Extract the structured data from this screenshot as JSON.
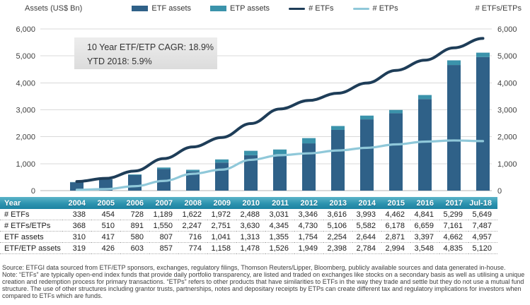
{
  "annotation": {
    "line1": "10 Year ETF/ETP CAGR: 18.9%",
    "line2": "YTD 2018: 5.9%"
  },
  "legend": {
    "items": [
      {
        "label": "ETF assets",
        "type": "square",
        "color": "#2f6188"
      },
      {
        "label": "ETP assets",
        "type": "square",
        "color": "#3b93ab"
      },
      {
        "label": "# ETFs",
        "type": "line",
        "color": "#1e3d58"
      },
      {
        "label": "# ETPs",
        "type": "line",
        "color": "#8fc8d9"
      }
    ]
  },
  "chart_data": {
    "type": "combo",
    "subtypes": [
      "stacked-bar",
      "line"
    ],
    "categories": [
      "2004",
      "2005",
      "2006",
      "2007",
      "2008",
      "2009",
      "2010",
      "2011",
      "2012",
      "2013",
      "2014",
      "2015",
      "2016",
      "2017",
      "Jul-18"
    ],
    "series": [
      {
        "name": "ETF assets",
        "chart_type": "bar",
        "stack": "assets",
        "color": "#2f6188",
        "values": [
          310,
          417,
          580,
          807,
          716,
          1041,
          1313,
          1355,
          1754,
          2254,
          2644,
          2871,
          3397,
          4662,
          4957
        ]
      },
      {
        "name": "ETP assets",
        "chart_type": "bar",
        "stack": "assets",
        "color": "#3b93ab",
        "values": [
          9,
          9,
          23,
          50,
          58,
          117,
          165,
          171,
          195,
          144,
          140,
          123,
          151,
          173,
          163
        ]
      },
      {
        "name": "# ETFs",
        "chart_type": "line",
        "axis": "right",
        "color": "#1e3d58",
        "values": [
          338,
          454,
          728,
          1189,
          1622,
          1972,
          2488,
          3031,
          3346,
          3616,
          3993,
          4462,
          4841,
          5299,
          5649
        ]
      },
      {
        "name": "# ETPs",
        "chart_type": "line",
        "axis": "right",
        "color": "#8fc8d9",
        "values": [
          30,
          56,
          163,
          361,
          625,
          779,
          1142,
          1314,
          1384,
          1490,
          1589,
          1716,
          1818,
          1862,
          1838
        ]
      }
    ],
    "y_left": {
      "label": "Assets (US$ Bn)",
      "min": 0,
      "max": 6000,
      "step": 1000
    },
    "y_right": {
      "label": "# ETFs/ETPs",
      "min": 0,
      "max": 6000,
      "step": 1000
    },
    "grid": true,
    "legend_position": "top"
  },
  "table": {
    "corner_label": "Year",
    "columns": [
      "2004",
      "2005",
      "2006",
      "2007",
      "2008",
      "2009",
      "2010",
      "2011",
      "2012",
      "2013",
      "2014",
      "2015",
      "2016",
      "2017",
      "Jul-18"
    ],
    "rows": [
      {
        "label": "# ETFs",
        "values": [
          "338",
          "454",
          "728",
          "1,189",
          "1,622",
          "1,972",
          "2,488",
          "3,031",
          "3,346",
          "3,616",
          "3,993",
          "4,462",
          "4,841",
          "5,299",
          "5,649"
        ]
      },
      {
        "label": "# ETFs/ETPs",
        "values": [
          "368",
          "510",
          "891",
          "1,550",
          "2,247",
          "2,751",
          "3,630",
          "4,345",
          "4,730",
          "5,106",
          "5,582",
          "6,178",
          "6,659",
          "7,161",
          "7,487"
        ]
      },
      {
        "label": "ETF assets",
        "values": [
          "310",
          "417",
          "580",
          "807",
          "716",
          "1,041",
          "1,313",
          "1,355",
          "1,754",
          "2,254",
          "2,644",
          "2,871",
          "3,397",
          "4,662",
          "4,957"
        ]
      },
      {
        "label": "ETF/ETP assets",
        "values": [
          "319",
          "426",
          "603",
          "857",
          "774",
          "1,158",
          "1,478",
          "1,526",
          "1,949",
          "2,398",
          "2,784",
          "2,994",
          "3,548",
          "4,835",
          "5,120"
        ]
      }
    ]
  },
  "footnotes": {
    "source": "Source: ETFGI data sourced from ETF/ETP sponsors, exchanges, regulatory filings, Thomson Reuters/Lipper, Bloomberg, publicly available sources and data generated in-house.",
    "note": "Note: “ETFs” are typically open-end index funds that provide daily portfolio transparency, are listed and traded on exchanges like stocks on a secondary basis as well as utilising a unique creation and redemption process for primary transactions. “ETPs” refers to other products that have similarities to ETFs in the way they trade and settle but they do not use a mutual fund structure. The use of other structures including grantor trusts, partnerships, notes and depositary receipts by ETPs can create different tax and regulatory implications for investors when compared to ETFs which are funds."
  },
  "colors": {
    "etf_bar": "#2f6188",
    "etp_bar": "#3b93ab",
    "etfs_line": "#1e3d58",
    "etps_line": "#8fc8d9",
    "gridline": "#d9d9d9",
    "axis_line": "#b5b5b5",
    "tick_text": "#404040",
    "table_header_top": "#5cb4c8",
    "table_header_bottom": "#1d82a1"
  }
}
